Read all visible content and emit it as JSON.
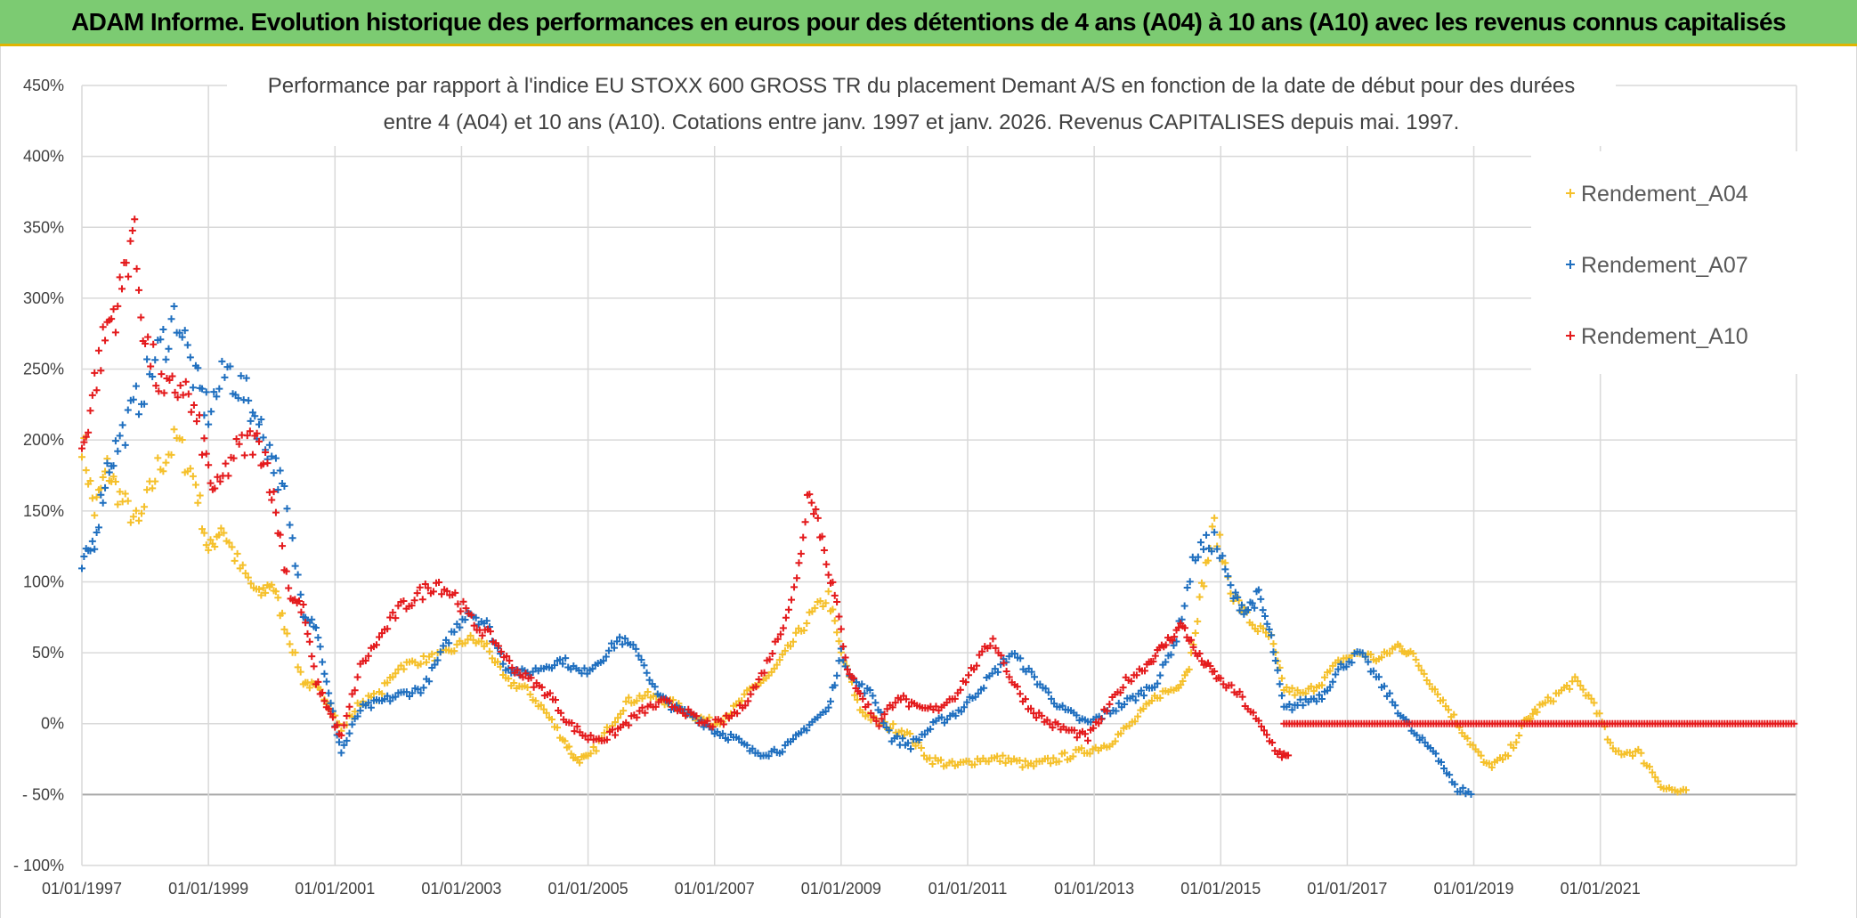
{
  "header": {
    "title": "ADAM Informe. Evolution historique des performances en euros pour des détentions de 4 ans (A04) à 10 ans (A10) avec les revenus connus capitalisés"
  },
  "colors": {
    "a04": "#f5c02a",
    "a07": "#1f6fbf",
    "a10": "#e41a1c",
    "banner": "#7ccb72",
    "grid": "#d9d9d9"
  },
  "chart_data": {
    "type": "scatter",
    "title_line1": "Performance par rapport à l'indice EU STOXX 600 GROSS TR  du placement Demant A/S en fonction de la date de début pour des durées",
    "title_line2": "entre 4 (A04) et 10 ans (A10). Cotations entre janv. 1997 et janv. 2026. Revenus CAPITALISES depuis mai. 1997.",
    "xlabel": "",
    "ylabel": "",
    "xlim": [
      1997.0,
      2024.1
    ],
    "ylim": [
      -100,
      450
    ],
    "y_ticks": [
      450,
      400,
      350,
      300,
      250,
      200,
      150,
      100,
      50,
      0,
      -50,
      -100
    ],
    "y_tick_labels": [
      "450%",
      "400%",
      "350%",
      "300%",
      "250%",
      "200%",
      "150%",
      "100%",
      "50%",
      "0%",
      "- 50%",
      "- 100%"
    ],
    "x_ticks": [
      1997,
      1999,
      2001,
      2003,
      2005,
      2007,
      2009,
      2011,
      2013,
      2015,
      2017,
      2019,
      2021
    ],
    "x_tick_labels": [
      "01/01/1997",
      "01/01/1999",
      "01/01/2001",
      "01/01/2003",
      "01/01/2005",
      "01/01/2007",
      "01/01/2009",
      "01/01/2011",
      "01/01/2013",
      "01/01/2015",
      "01/01/2017",
      "01/01/2019",
      "01/01/2021"
    ],
    "legend_position": "top-right",
    "series": [
      {
        "name": "Rendement_A04",
        "color": "#f5c02a",
        "x": [
          1997.0,
          1997.2,
          1997.4,
          1997.6,
          1997.9,
          1998.2,
          1998.5,
          1998.8,
          1999.0,
          1999.2,
          1999.5,
          1999.8,
          2000.0,
          2000.2,
          2000.5,
          2000.7,
          2000.9,
          2001.1,
          2001.4,
          2001.7,
          2002.0,
          2002.4,
          2002.8,
          2003.1,
          2003.4,
          2003.7,
          2004.0,
          2004.3,
          2004.6,
          2004.8,
          2005.0,
          2005.3,
          2005.6,
          2005.9,
          2006.3,
          2006.7,
          2007.0,
          2007.3,
          2007.6,
          2007.9,
          2008.2,
          2008.5,
          2008.8,
          2009.0,
          2009.3,
          2009.6,
          2010.0,
          2010.4,
          2010.8,
          2011.2,
          2011.6,
          2012.0,
          2012.4,
          2012.8,
          2013.2,
          2013.6,
          2014.0,
          2014.3,
          2014.5,
          2014.7,
          2014.9,
          2015.2,
          2015.5,
          2015.8,
          2016.0,
          2016.3,
          2016.6,
          2016.9,
          2017.2,
          2017.5,
          2017.8,
          2018.0,
          2018.3,
          2018.6,
          2018.9,
          2019.2,
          2019.5,
          2019.8,
          2020.0,
          2020.3,
          2020.6,
          2020.9,
          2021.2,
          2021.6,
          2022.0,
          2022.4
        ],
        "y": [
          200,
          150,
          180,
          160,
          140,
          180,
          200,
          170,
          120,
          140,
          110,
          90,
          100,
          70,
          30,
          25,
          15,
          -5,
          15,
          20,
          40,
          45,
          50,
          60,
          55,
          30,
          25,
          10,
          -10,
          -25,
          -25,
          -5,
          15,
          20,
          15,
          5,
          0,
          10,
          25,
          35,
          55,
          75,
          90,
          50,
          10,
          0,
          -5,
          -25,
          -30,
          -25,
          -25,
          -30,
          -25,
          -20,
          -15,
          0,
          20,
          25,
          40,
          95,
          140,
          90,
          70,
          60,
          25,
          20,
          30,
          45,
          50,
          45,
          55,
          50,
          30,
          10,
          -10,
          -30,
          -25,
          0,
          10,
          20,
          30,
          15,
          -20,
          -20,
          -45,
          -50
        ]
      },
      {
        "name": "Rendement_A07",
        "color": "#1f6fbf",
        "x": [
          1997.0,
          1997.2,
          1997.4,
          1997.6,
          1997.9,
          1998.2,
          1998.5,
          1998.8,
          1999.0,
          1999.3,
          1999.6,
          1999.8,
          2000.0,
          2000.2,
          2000.5,
          2000.7,
          2000.9,
          2001.1,
          2001.4,
          2001.7,
          2002.0,
          2002.4,
          2002.8,
          2003.1,
          2003.4,
          2003.7,
          2004.0,
          2004.3,
          2004.6,
          2004.9,
          2005.2,
          2005.5,
          2005.8,
          2006.1,
          2006.4,
          2006.7,
          2007.0,
          2007.3,
          2007.6,
          2007.9,
          2008.2,
          2008.5,
          2008.8,
          2009.0,
          2009.2,
          2009.5,
          2009.8,
          2010.1,
          2010.5,
          2010.9,
          2011.3,
          2011.7,
          2012.1,
          2012.5,
          2012.9,
          2013.3,
          2013.7,
          2014.0,
          2014.3,
          2014.6,
          2014.9,
          2015.2,
          2015.4,
          2015.6,
          2015.8,
          2016.0,
          2016.3,
          2016.6,
          2016.9,
          2017.2,
          2017.5,
          2017.8,
          2018.1,
          2018.4,
          2018.7,
          2019.0
        ],
        "y": [
          110,
          130,
          180,
          200,
          230,
          260,
          290,
          240,
          220,
          250,
          230,
          210,
          190,
          160,
          80,
          70,
          20,
          -20,
          10,
          15,
          20,
          25,
          60,
          80,
          70,
          40,
          35,
          40,
          45,
          35,
          45,
          60,
          50,
          20,
          10,
          5,
          -5,
          -10,
          -20,
          -20,
          -15,
          0,
          10,
          50,
          30,
          20,
          -10,
          -15,
          0,
          10,
          30,
          50,
          30,
          10,
          0,
          10,
          20,
          30,
          60,
          120,
          130,
          90,
          80,
          90,
          60,
          10,
          15,
          20,
          40,
          50,
          30,
          10,
          -10,
          -20,
          -45,
          -50
        ]
      },
      {
        "name": "Rendement_A10",
        "color": "#e41a1c",
        "x": [
          1997.0,
          1997.2,
          1997.4,
          1997.6,
          1997.8,
          1998.0,
          1998.3,
          1998.6,
          1998.9,
          1999.1,
          1999.4,
          1999.7,
          1999.9,
          2000.1,
          2000.3,
          2000.5,
          2000.7,
          2000.9,
          2001.1,
          2001.4,
          2001.7,
          2002.0,
          2002.3,
          2002.6,
          2002.9,
          2003.2,
          2003.5,
          2003.8,
          2004.1,
          2004.4,
          2004.7,
          2005.0,
          2005.3,
          2005.6,
          2005.9,
          2006.2,
          2006.5,
          2006.8,
          2007.1,
          2007.4,
          2007.7,
          2008.0,
          2008.3,
          2008.5,
          2008.7,
          2008.9,
          2009.1,
          2009.3,
          2009.6,
          2009.9,
          2010.2,
          2010.5,
          2010.8,
          2011.1,
          2011.4,
          2011.7,
          2012.0,
          2012.3,
          2012.6,
          2012.9,
          2013.2,
          2013.5,
          2013.8,
          2014.0,
          2014.2,
          2014.4,
          2014.6,
          2014.8,
          2015.0,
          2015.3,
          2015.6,
          2015.9,
          2016.1
        ],
        "y": [
          190,
          240,
          280,
          300,
          350,
          270,
          230,
          240,
          200,
          160,
          190,
          200,
          190,
          140,
          90,
          80,
          30,
          10,
          -10,
          40,
          60,
          80,
          90,
          100,
          90,
          70,
          60,
          40,
          30,
          20,
          0,
          -10,
          -10,
          0,
          10,
          15,
          10,
          0,
          0,
          10,
          30,
          60,
          100,
          170,
          130,
          90,
          40,
          20,
          0,
          20,
          10,
          10,
          20,
          40,
          60,
          30,
          10,
          0,
          -5,
          -10,
          10,
          30,
          40,
          50,
          60,
          70,
          50,
          40,
          30,
          20,
          0,
          -20,
          -25
        ]
      },
      {
        "name": "Rendement_A10 (flat segment)",
        "color": "#e41a1c",
        "x": [
          2016.0,
          2024.1
        ],
        "y": [
          0,
          0
        ]
      }
    ],
    "legend": [
      "Rendement_A04",
      "Rendement_A07",
      "Rendement_A10"
    ]
  }
}
